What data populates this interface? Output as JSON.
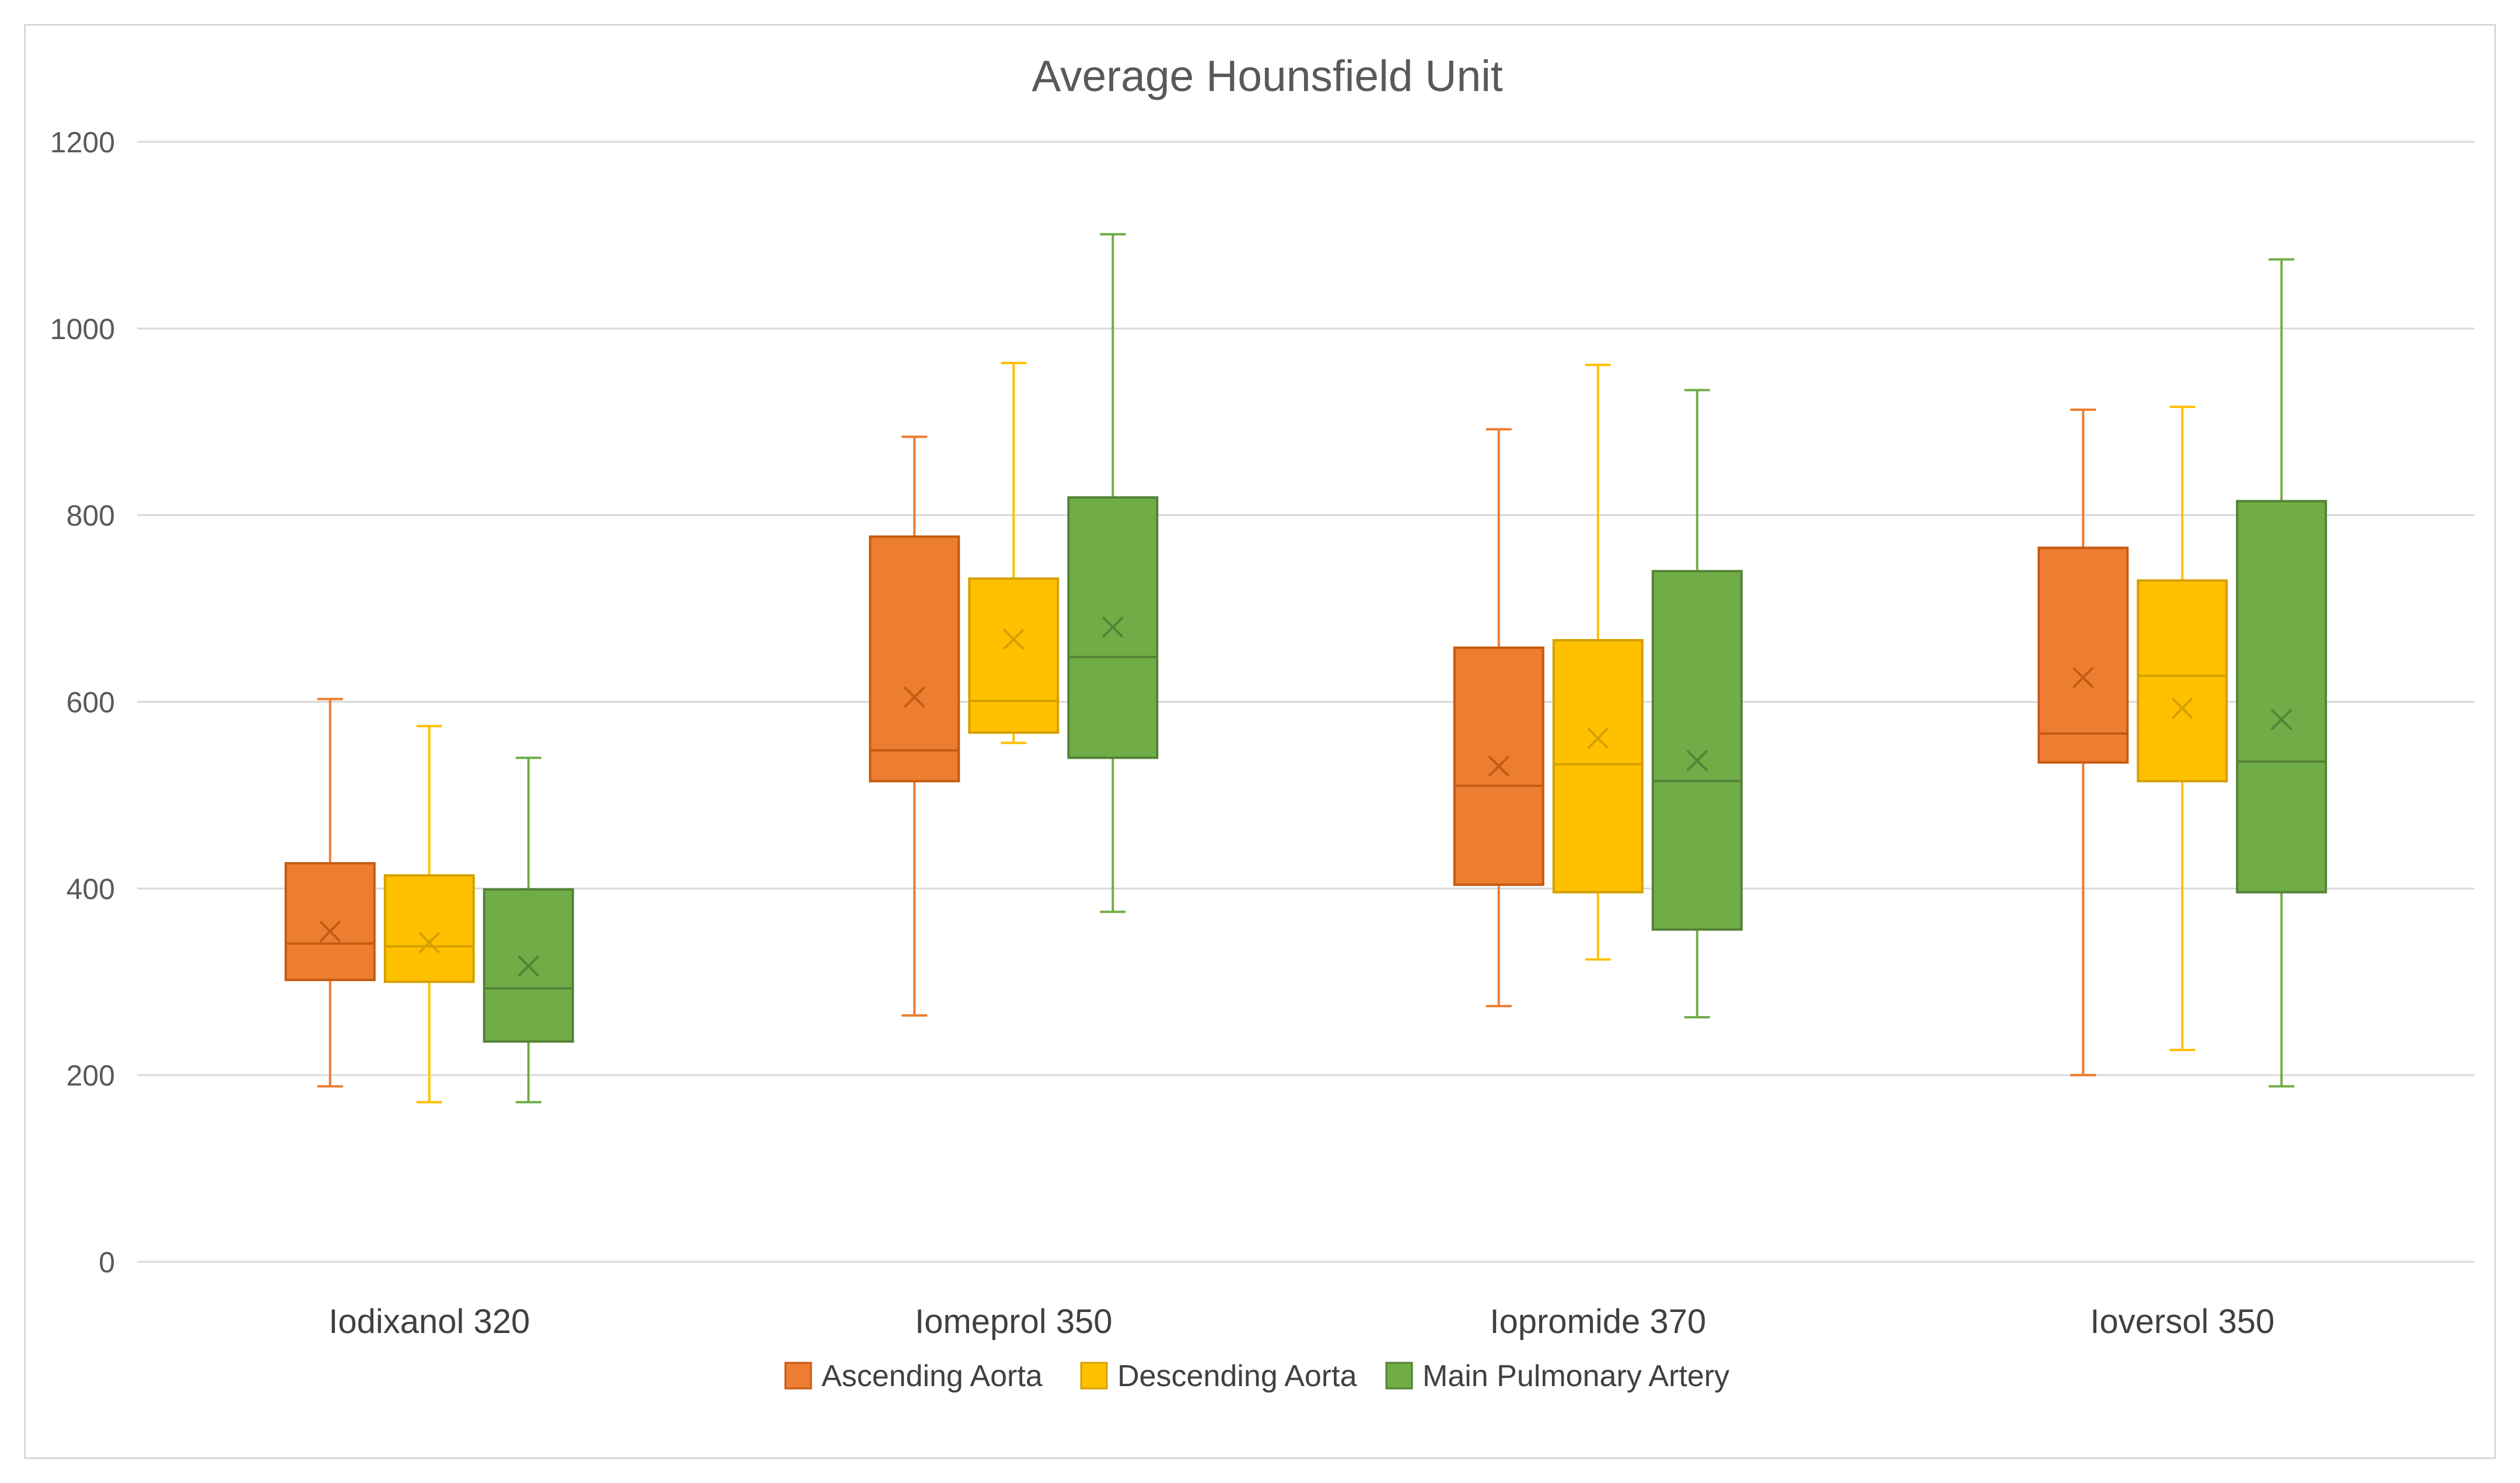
{
  "chart_data": {
    "type": "box",
    "title": "Average Hounsfield Unit",
    "xlabel": "",
    "ylabel": "",
    "ylim": [
      0,
      1200
    ],
    "yticks": [
      "0",
      "200",
      "400",
      "600",
      "800",
      "1000",
      "1200"
    ],
    "ytick_values": [
      0,
      200,
      400,
      600,
      800,
      1000,
      1200
    ],
    "grid": true,
    "legend_position": "bottom",
    "categories": [
      "Iodixanol 320",
      "Iomeprol 350",
      "Iopromide 370",
      "Ioversol 350"
    ],
    "series": [
      {
        "name": "Ascending Aorta",
        "color": "#ED7D31",
        "stroke": "#C55A11",
        "boxes": [
          {
            "min": 188,
            "q1": 302,
            "median": 341,
            "q3": 427,
            "max": 603,
            "mean": 354
          },
          {
            "min": 264,
            "q1": 515,
            "median": 548,
            "q3": 777,
            "max": 884,
            "mean": 605
          },
          {
            "min": 274,
            "q1": 404,
            "median": 510,
            "q3": 658,
            "max": 892,
            "mean": 531
          },
          {
            "min": 200,
            "q1": 535,
            "median": 566,
            "q3": 765,
            "max": 913,
            "mean": 626
          }
        ]
      },
      {
        "name": "Descending Aorta",
        "color": "#FFC000",
        "stroke": "#D4A000",
        "boxes": [
          {
            "min": 171,
            "q1": 300,
            "median": 338,
            "q3": 414,
            "max": 574,
            "mean": 342
          },
          {
            "min": 556,
            "q1": 567,
            "median": 601,
            "q3": 732,
            "max": 963,
            "mean": 667
          },
          {
            "min": 324,
            "q1": 396,
            "median": 533,
            "q3": 666,
            "max": 961,
            "mean": 561
          },
          {
            "min": 227,
            "q1": 515,
            "median": 628,
            "q3": 730,
            "max": 916,
            "mean": 593
          }
        ]
      },
      {
        "name": "Main Pulmonary Artery",
        "color": "#70AD47",
        "stroke": "#548235",
        "boxes": [
          {
            "min": 171,
            "q1": 236,
            "median": 293,
            "q3": 399,
            "max": 540,
            "mean": 317
          },
          {
            "min": 375,
            "q1": 540,
            "median": 648,
            "q3": 819,
            "max": 1101,
            "mean": 680
          },
          {
            "min": 262,
            "q1": 356,
            "median": 515,
            "q3": 740,
            "max": 934,
            "mean": 537
          },
          {
            "min": 188,
            "q1": 396,
            "median": 536,
            "q3": 815,
            "max": 1074,
            "mean": 581
          }
        ]
      }
    ]
  }
}
